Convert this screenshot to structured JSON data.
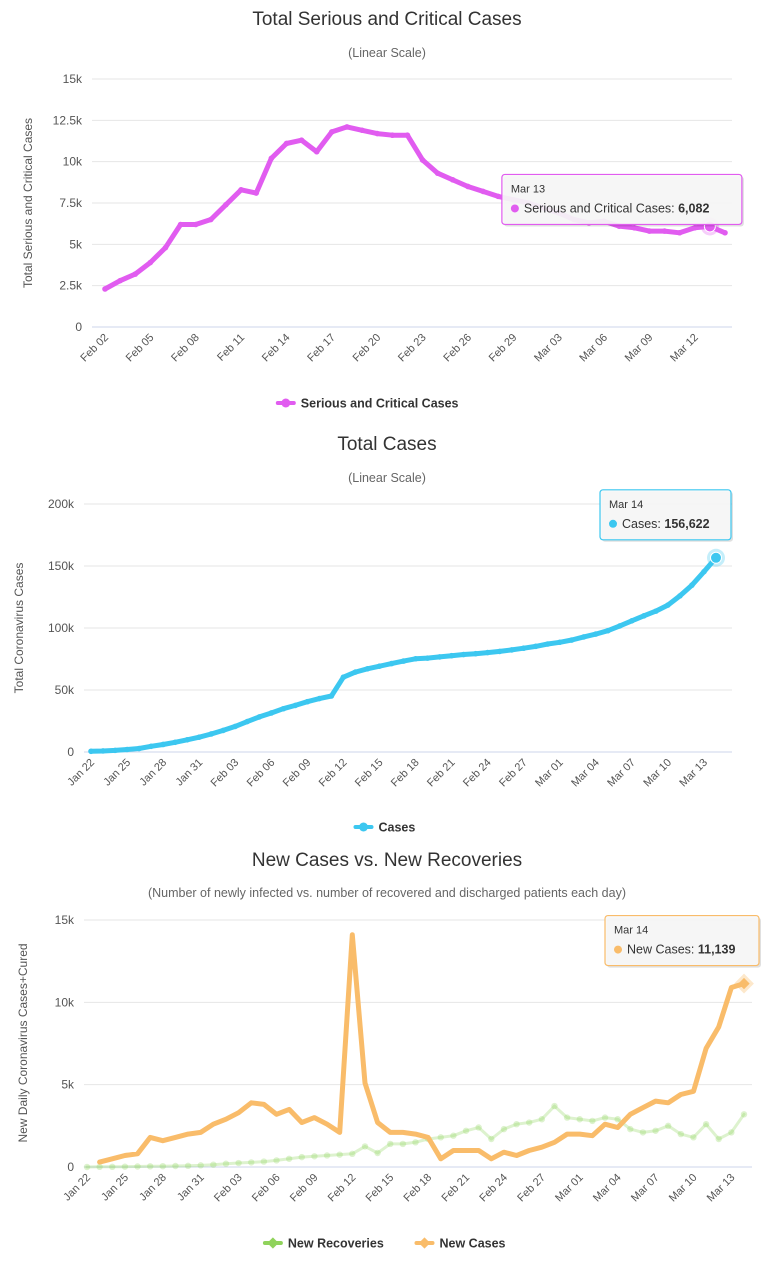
{
  "chart_data": [
    {
      "type": "line",
      "title": "Total Serious and Critical Cases",
      "subtitle": "(Linear Scale)",
      "ylabel": "Total Serious and Critical Cases",
      "ylim": [
        0,
        15000
      ],
      "yticks": [
        0,
        2500,
        5000,
        7500,
        10000,
        12500,
        15000
      ],
      "ytick_labels": [
        "0",
        "2.5k",
        "5k",
        "7.5k",
        "10k",
        "12.5k",
        "15k"
      ],
      "xtick_labels": [
        "Feb 02",
        "Feb 05",
        "Feb 08",
        "Feb 11",
        "Feb 14",
        "Feb 17",
        "Feb 20",
        "Feb 23",
        "Feb 26",
        "Feb 29",
        "Mar 03",
        "Mar 06",
        "Mar 09",
        "Mar 12"
      ],
      "x": [
        "Feb 02",
        "Feb 03",
        "Feb 04",
        "Feb 05",
        "Feb 06",
        "Feb 07",
        "Feb 08",
        "Feb 09",
        "Feb 10",
        "Feb 11",
        "Feb 12",
        "Feb 13",
        "Feb 14",
        "Feb 15",
        "Feb 16",
        "Feb 17",
        "Feb 18",
        "Feb 19",
        "Feb 20",
        "Feb 21",
        "Feb 22",
        "Feb 23",
        "Feb 24",
        "Feb 25",
        "Feb 26",
        "Feb 27",
        "Feb 28",
        "Feb 29",
        "Mar 01",
        "Mar 02",
        "Mar 03",
        "Mar 04",
        "Mar 05",
        "Mar 06",
        "Mar 07",
        "Mar 08",
        "Mar 09",
        "Mar 10",
        "Mar 11",
        "Mar 12",
        "Mar 13",
        "Mar 14"
      ],
      "grid": true,
      "legend_position": "bottom-center",
      "color": "#e15cf0",
      "series": [
        {
          "name": "Serious and Critical Cases",
          "values": [
            2300,
            2800,
            3200,
            3900,
            4800,
            6200,
            6200,
            6500,
            7400,
            8300,
            8100,
            10200,
            11100,
            11300,
            10600,
            11800,
            12100,
            11900,
            11700,
            11600,
            11600,
            10100,
            9300,
            8900,
            8500,
            8200,
            7900,
            7700,
            7500,
            7200,
            6900,
            6500,
            6300,
            6400,
            6100,
            6000,
            5800,
            5800,
            5700,
            6000,
            6082,
            5700
          ]
        }
      ],
      "tooltip": {
        "date": "Mar 13",
        "label": "Serious and Critical Cases: ",
        "value": "6,082",
        "index": 40
      }
    },
    {
      "type": "line",
      "title": "Total Cases",
      "subtitle": "(Linear Scale)",
      "ylabel": "Total Coronavirus Cases",
      "ylim": [
        0,
        200000
      ],
      "yticks": [
        0,
        50000,
        100000,
        150000,
        200000
      ],
      "ytick_labels": [
        "0",
        "50k",
        "100k",
        "150k",
        "200k"
      ],
      "xtick_labels": [
        "Jan 22",
        "Jan 25",
        "Jan 28",
        "Jan 31",
        "Feb 03",
        "Feb 06",
        "Feb 09",
        "Feb 12",
        "Feb 15",
        "Feb 18",
        "Feb 21",
        "Feb 24",
        "Feb 27",
        "Mar 01",
        "Mar 04",
        "Mar 07",
        "Mar 10",
        "Mar 13"
      ],
      "x": [
        "Jan 22",
        "Jan 23",
        "Jan 24",
        "Jan 25",
        "Jan 26",
        "Jan 27",
        "Jan 28",
        "Jan 29",
        "Jan 30",
        "Jan 31",
        "Feb 01",
        "Feb 02",
        "Feb 03",
        "Feb 04",
        "Feb 05",
        "Feb 06",
        "Feb 07",
        "Feb 08",
        "Feb 09",
        "Feb 10",
        "Feb 11",
        "Feb 12",
        "Feb 13",
        "Feb 14",
        "Feb 15",
        "Feb 16",
        "Feb 17",
        "Feb 18",
        "Feb 19",
        "Feb 20",
        "Feb 21",
        "Feb 22",
        "Feb 23",
        "Feb 24",
        "Feb 25",
        "Feb 26",
        "Feb 27",
        "Feb 28",
        "Feb 29",
        "Mar 01",
        "Mar 02",
        "Mar 03",
        "Mar 04",
        "Mar 05",
        "Mar 06",
        "Mar 07",
        "Mar 08",
        "Mar 09",
        "Mar 10",
        "Mar 11",
        "Mar 12",
        "Mar 13",
        "Mar 14"
      ],
      "grid": true,
      "legend_position": "bottom-center",
      "color": "#3cc7f0",
      "series": [
        {
          "name": "Cases",
          "values": [
            580,
            845,
            1320,
            2010,
            2800,
            4580,
            6060,
            7820,
            9830,
            11950,
            14550,
            17390,
            20630,
            24550,
            28280,
            31480,
            34880,
            37560,
            40550,
            43100,
            45170,
            60350,
            64450,
            67100,
            69200,
            71300,
            73300,
            75200,
            75700,
            76700,
            77700,
            78600,
            79300,
            80200,
            81100,
            82300,
            83700,
            85200,
            87100,
            88500,
            90300,
            92800,
            95100,
            97800,
            101700,
            105800,
            109800,
            113600,
            118500,
            125900,
            134600,
            145400,
            156622
          ]
        }
      ],
      "tooltip": {
        "date": "Mar 14",
        "label": "Cases: ",
        "value": "156,622",
        "index": 52
      }
    },
    {
      "type": "line",
      "title": "New Cases vs. New Recoveries",
      "subtitle": "(Number of newly infected vs. number of recovered and discharged patients each day)",
      "ylabel": "New Daily Coronavirus Cases+Cured",
      "ylim": [
        0,
        15000
      ],
      "yticks": [
        0,
        5000,
        10000,
        15000
      ],
      "ytick_labels": [
        "0",
        "5k",
        "10k",
        "15k"
      ],
      "xtick_labels": [
        "Jan 22",
        "Jan 25",
        "Jan 28",
        "Jan 31",
        "Feb 03",
        "Feb 06",
        "Feb 09",
        "Feb 12",
        "Feb 15",
        "Feb 18",
        "Feb 21",
        "Feb 24",
        "Feb 27",
        "Mar 01",
        "Mar 04",
        "Mar 07",
        "Mar 10",
        "Mar 13"
      ],
      "x": [
        "Jan 22",
        "Jan 23",
        "Jan 24",
        "Jan 25",
        "Jan 26",
        "Jan 27",
        "Jan 28",
        "Jan 29",
        "Jan 30",
        "Jan 31",
        "Feb 01",
        "Feb 02",
        "Feb 03",
        "Feb 04",
        "Feb 05",
        "Feb 06",
        "Feb 07",
        "Feb 08",
        "Feb 09",
        "Feb 10",
        "Feb 11",
        "Feb 12",
        "Feb 13",
        "Feb 14",
        "Feb 15",
        "Feb 16",
        "Feb 17",
        "Feb 18",
        "Feb 19",
        "Feb 20",
        "Feb 21",
        "Feb 22",
        "Feb 23",
        "Feb 24",
        "Feb 25",
        "Feb 26",
        "Feb 27",
        "Feb 28",
        "Feb 29",
        "Mar 01",
        "Mar 02",
        "Mar 03",
        "Mar 04",
        "Mar 05",
        "Mar 06",
        "Mar 07",
        "Mar 08",
        "Mar 09",
        "Mar 10",
        "Mar 11",
        "Mar 12",
        "Mar 13",
        "Mar 14"
      ],
      "grid": true,
      "legend_position": "bottom-center",
      "series": [
        {
          "name": "New Recoveries",
          "color": "#90d35c",
          "style": "faded",
          "values": [
            0,
            10,
            10,
            20,
            30,
            40,
            50,
            60,
            70,
            100,
            140,
            200,
            240,
            280,
            330,
            400,
            500,
            600,
            650,
            700,
            750,
            800,
            1250,
            850,
            1400,
            1400,
            1500,
            1700,
            1800,
            1900,
            2200,
            2400,
            1700,
            2300,
            2600,
            2700,
            2900,
            3700,
            3000,
            2900,
            2800,
            3000,
            2900,
            2300,
            2100,
            2200,
            2500,
            2000,
            1800,
            2600,
            1700,
            2100,
            3200
          ]
        },
        {
          "name": "New Cases",
          "color": "#f9bc6a",
          "style": "solid",
          "values": [
            null,
            300,
            500,
            700,
            800,
            1800,
            1600,
            1800,
            2000,
            2100,
            2600,
            2900,
            3300,
            3900,
            3800,
            3200,
            3500,
            2700,
            3000,
            2600,
            2100,
            14100,
            5100,
            2700,
            2100,
            2100,
            2000,
            1800,
            500,
            1000,
            1000,
            1000,
            500,
            900,
            700,
            1000,
            1200,
            1500,
            2000,
            2000,
            1900,
            2600,
            2400,
            3200,
            3600,
            4000,
            3900,
            4400,
            4600,
            7200,
            8500,
            10900,
            11139
          ]
        }
      ],
      "tooltip": {
        "date": "Mar 14",
        "label": "New Cases: ",
        "value": "11,139",
        "series": 1,
        "index": 52
      }
    }
  ]
}
